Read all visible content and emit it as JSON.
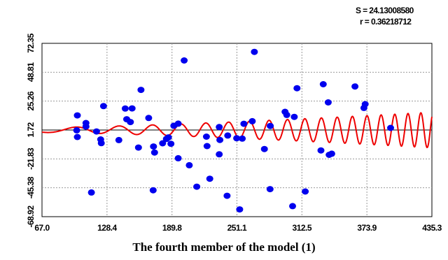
{
  "stats": {
    "s_label": "S = 24.13008580",
    "r_label": "r = 0.36218712"
  },
  "caption": "The fourth member of the model (1)",
  "chart_data": {
    "type": "scatter",
    "title": "",
    "xlabel": "The fourth member of the model (1)",
    "ylabel": "",
    "xlim": [
      67.0,
      435.3
    ],
    "ylim": [
      -68.92,
      72.35
    ],
    "x_ticks": [
      "67.0",
      "128.4",
      "189.8",
      "251.1",
      "312.5",
      "373.9",
      "435.3"
    ],
    "y_ticks": [
      "72.35",
      "48.81",
      "25.26",
      "1.72",
      "-21.83",
      "-45.38",
      "-68.92"
    ],
    "grid": true,
    "baseline_y": 1.72,
    "colors": {
      "points": "#0000ee",
      "curve": "#ee0000",
      "baseline": "#000000",
      "grid": "#999999"
    },
    "series": [
      {
        "kind": "points",
        "x": [
          99.8,
          100.4,
          100.4,
          108.5,
          108.5,
          113.7,
          118.5,
          122.4,
          123.0,
          125.1,
          139.6,
          145.6,
          147.0,
          150.5,
          152.1,
          158.1,
          160.5,
          167.8,
          172.0,
          172.3,
          173.3,
          180.9,
          184.5,
          186.4,
          188.8,
          191.5,
          195.7,
          195.7,
          201.3,
          206.1,
          213.2,
          222.3,
          222.9,
          225.5,
          234.4,
          234.4,
          235.0,
          241.8,
          242.4,
          250.9,
          253.7,
          256.2,
          257.7,
          265.6,
          267.6,
          277.1,
          282.4,
          282.6,
          296.6,
          298.2,
          303.7,
          305.3,
          307.9,
          315.7,
          330.5,
          332.7,
          337.4,
          338.2,
          340.7,
          362.6,
          371.1,
          372.3,
          396.3
        ],
        "y": [
          1.5,
          -4.0,
          13.6,
          7.4,
          4.5,
          -49.2,
          0.5,
          -6.0,
          -9.0,
          21.2,
          -6.5,
          19.2,
          10.5,
          8.2,
          19.3,
          -12.6,
          34.4,
          11.5,
          -47.4,
          -11.7,
          -16.6,
          -9.1,
          -5.6,
          -4.3,
          -9.5,
          5.2,
          6.9,
          -21.3,
          58.4,
          -27.0,
          -44.5,
          -3.7,
          -11.4,
          -38.0,
          -18.1,
          4.1,
          -6.4,
          -51.9,
          -2.8,
          -5.0,
          -63.0,
          -5.3,
          6.8,
          8.9,
          65.4,
          -13.8,
          -46.5,
          5.0,
          16.5,
          14.0,
          -60.3,
          12.4,
          35.8,
          -48.4,
          -14.9,
          39.0,
          24.2,
          -18.5,
          -17.6,
          37.2,
          19.7,
          22.8,
          3.4
        ]
      },
      {
        "kind": "curve",
        "function": "fitted oscillating model curve (frequency and amplitude increasing with x)"
      }
    ]
  }
}
